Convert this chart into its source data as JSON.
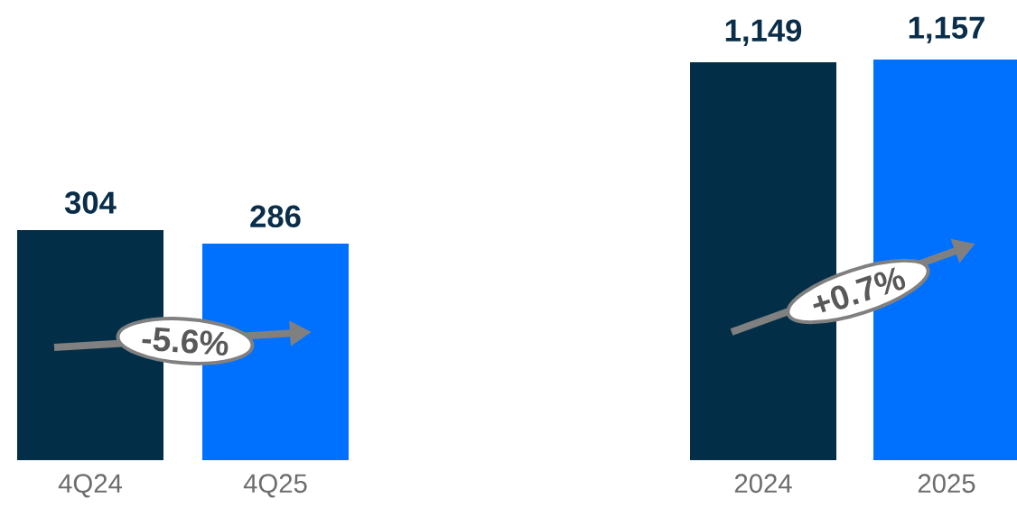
{
  "chart_data": [
    {
      "type": "bar",
      "categories": [
        "4Q24",
        "4Q25"
      ],
      "values": [
        304,
        286
      ],
      "colors": [
        "#022f47",
        "#0070ff"
      ],
      "value_labels": [
        "304",
        "286"
      ],
      "annotations": [
        "-5.6%"
      ]
    },
    {
      "type": "bar",
      "categories": [
        "2024",
        "2025"
      ],
      "values": [
        1149,
        1157
      ],
      "colors": [
        "#022f47",
        "#0070ff"
      ],
      "value_labels": [
        "1,149",
        "1,157"
      ],
      "annotations": [
        "+0.7%"
      ]
    }
  ]
}
